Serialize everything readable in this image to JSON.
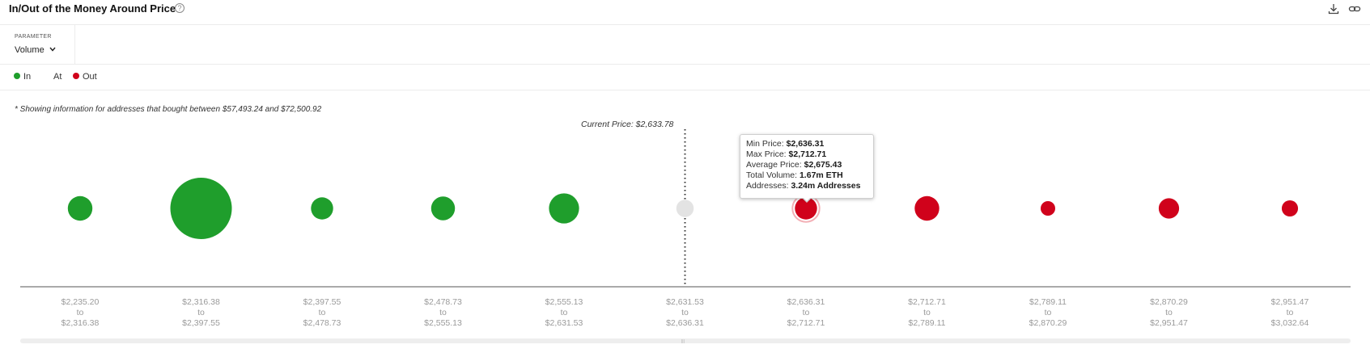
{
  "header": {
    "title": "In/Out of the Money Around Price",
    "help_glyph": "?"
  },
  "parameter": {
    "label": "PARAMETER",
    "value": "Volume"
  },
  "legend": {
    "items": [
      {
        "label": "In",
        "color": "#1f9e2c"
      },
      {
        "label": "At",
        "color": ""
      },
      {
        "label": "Out",
        "color": "#d0021b"
      }
    ]
  },
  "note": "* Showing information for addresses that bought between $57,493.24 and $72,500.92",
  "current_price_label": "Current Price: $2,633.78",
  "tooltip": {
    "rows": [
      {
        "key": "Min Price:",
        "value": "$2,636.31"
      },
      {
        "key": "Max Price:",
        "value": "$2,712.71"
      },
      {
        "key": "Average Price:",
        "value": "$2,675.43"
      },
      {
        "key": "Total Volume:",
        "value": "1.67m ETH"
      },
      {
        "key": "Addresses:",
        "value": "3.24m Addresses"
      }
    ]
  },
  "icons": [
    "help-icon",
    "download-icon",
    "link-icon",
    "chevron-down-icon"
  ],
  "colors": {
    "in": "#1f9e2c",
    "at": "#e3e3e3",
    "out": "#d0021b",
    "axis": "#555555",
    "tick_text": "#9a9a9a"
  },
  "chart_data": {
    "type": "bubble",
    "title": "In/Out of the Money Around Price",
    "series": [
      {
        "name": "In",
        "color": "#1f9e2c"
      },
      {
        "name": "At",
        "color": "#e3e3e3"
      },
      {
        "name": "Out",
        "color": "#d0021b"
      }
    ],
    "current_price": 2633.78,
    "categories": [
      {
        "from": "$2,235.20",
        "to": "$2,316.38",
        "status": "In",
        "relative_size": 0.16
      },
      {
        "from": "$2,316.38",
        "to": "$2,397.55",
        "status": "In",
        "relative_size": 1.0
      },
      {
        "from": "$2,397.55",
        "to": "$2,478.73",
        "status": "In",
        "relative_size": 0.13
      },
      {
        "from": "$2,478.73",
        "to": "$2,555.13",
        "status": "In",
        "relative_size": 0.15
      },
      {
        "from": "$2,555.13",
        "to": "$2,631.53",
        "status": "In",
        "relative_size": 0.24
      },
      {
        "from": "$2,631.53",
        "to": "$2,636.31",
        "status": "At",
        "relative_size": 0.08
      },
      {
        "from": "$2,636.31",
        "to": "$2,712.71",
        "status": "Out",
        "relative_size": 0.13,
        "total_volume": "1.67m ETH",
        "addresses": "3.24m Addresses",
        "average_price": "$2,675.43"
      },
      {
        "from": "$2,712.71",
        "to": "$2,789.11",
        "status": "Out",
        "relative_size": 0.16
      },
      {
        "from": "$2,789.11",
        "to": "$2,870.29",
        "status": "Out",
        "relative_size": 0.05
      },
      {
        "from": "$2,870.29",
        "to": "$2,951.47",
        "status": "Out",
        "relative_size": 0.11
      },
      {
        "from": "$2,951.47",
        "to": "$3,032.64",
        "status": "Out",
        "relative_size": 0.07
      }
    ],
    "tick_connector": "to",
    "grid": false,
    "legend_position": "top-left"
  }
}
